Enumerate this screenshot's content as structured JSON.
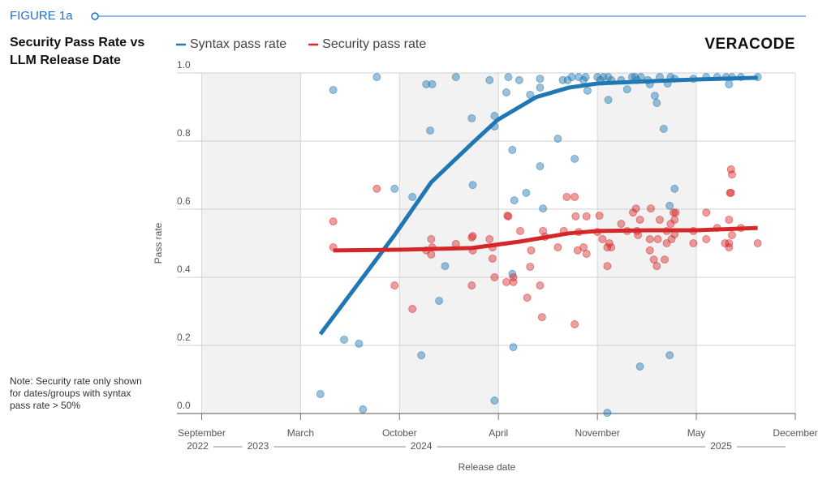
{
  "chart_data": {
    "type": "scatter",
    "figure_label": "FIGURE 1a",
    "title": "Security Pass Rate vs LLM Release Date",
    "brand": "VERACODE",
    "note": "Note: Security rate only shown for dates/groups with syntax pass rate > 50%",
    "xlabel": "Release date",
    "ylabel": "Pass rate",
    "xlim": [
      -0.25,
      6
    ],
    "ylim": [
      0,
      1
    ],
    "xticks": [
      {
        "value": 0,
        "label": "September"
      },
      {
        "value": 1,
        "label": "March"
      },
      {
        "value": 2,
        "label": "October"
      },
      {
        "value": 3,
        "label": "April"
      },
      {
        "value": 4,
        "label": "November"
      },
      {
        "value": 5,
        "label": "May"
      },
      {
        "value": 6,
        "label": "December"
      }
    ],
    "year_ticks": [
      {
        "value": -0.04,
        "label": "2022"
      },
      {
        "value": 0.57,
        "label": "2023"
      },
      {
        "value": 2.22,
        "label": "2024"
      },
      {
        "value": 5.25,
        "label": "2025"
      }
    ],
    "yticks": [
      {
        "value": 0,
        "label": "0.0"
      },
      0.2,
      0.4,
      0.6,
      0.8,
      {
        "value": 1,
        "label": "1.0"
      }
    ],
    "grid": true,
    "series": [
      {
        "name": "Syntax pass rate",
        "color": "#1f77b4",
        "x": [
          1.2,
          1.95,
          2.32,
          2.74,
          2.99,
          3.38,
          3.71,
          4.0,
          4.53,
          5.0,
          5.62
        ],
        "values": [
          0.233,
          0.524,
          0.679,
          0.795,
          0.862,
          0.929,
          0.957,
          0.969,
          0.976,
          0.981,
          0.986
        ]
      },
      {
        "name": "Security pass rate",
        "color": "#d62728",
        "x": [
          1.33,
          1.99,
          2.73,
          3.22,
          3.71,
          4.0,
          4.53,
          5.0,
          5.62
        ],
        "values": [
          0.479,
          0.481,
          0.486,
          0.505,
          0.529,
          0.536,
          0.538,
          0.538,
          0.545
        ]
      }
    ],
    "points": [
      {
        "color": "#1f77b4",
        "x": [
          1.2,
          1.33,
          1.44,
          1.59,
          1.63,
          1.77,
          1.95,
          2.13,
          2.22,
          2.27,
          2.33,
          2.31,
          2.4,
          2.46,
          2.57,
          2.73,
          2.74,
          2.91,
          2.96,
          2.96,
          2.96,
          3.08,
          3.1,
          3.14,
          3.14,
          3.15,
          3.16,
          3.21,
          3.28,
          3.32,
          3.42,
          3.42,
          3.45,
          3.42,
          3.6,
          3.65,
          3.7,
          3.74,
          3.77,
          3.81,
          3.86,
          3.88,
          3.9,
          4.0,
          4.03,
          4.06,
          4.11,
          4.11,
          4.1,
          4.14,
          4.24,
          4.3,
          4.35,
          4.38,
          4.4,
          4.44,
          4.43,
          4.51,
          4.53,
          4.58,
          4.6,
          4.63,
          4.67,
          4.71,
          4.73,
          4.74,
          4.78,
          4.73,
          4.78,
          4.97,
          5.1,
          5.21,
          5.3,
          5.33,
          5.36,
          5.45,
          5.62
        ],
        "values": [
          0.057,
          0.95,
          0.217,
          0.205,
          0.012,
          0.988,
          0.66,
          0.636,
          0.171,
          0.967,
          0.967,
          0.831,
          0.331,
          0.433,
          0.988,
          0.867,
          0.671,
          0.979,
          0.843,
          0.874,
          0.038,
          0.943,
          0.988,
          0.774,
          0.41,
          0.195,
          0.626,
          0.979,
          0.648,
          0.936,
          0.957,
          0.983,
          0.602,
          0.726,
          0.807,
          0.979,
          0.979,
          0.988,
          0.748,
          0.988,
          0.979,
          0.988,
          0.948,
          0.988,
          0.979,
          0.988,
          0.921,
          0.988,
          0.002,
          0.979,
          0.979,
          0.952,
          0.988,
          0.988,
          0.979,
          0.988,
          0.138,
          0.979,
          0.967,
          0.933,
          0.912,
          0.988,
          0.836,
          0.969,
          0.61,
          0.988,
          0.983,
          0.171,
          0.66,
          0.983,
          0.988,
          0.988,
          0.988,
          0.967,
          0.988,
          0.988,
          0.988
        ]
      },
      {
        "color": "#d62728",
        "x": [
          1.33,
          1.33,
          1.77,
          1.95,
          2.13,
          2.27,
          2.32,
          2.33,
          2.32,
          2.57,
          2.73,
          2.74,
          2.74,
          2.73,
          2.91,
          2.94,
          2.94,
          2.96,
          3.08,
          3.09,
          3.1,
          3.15,
          3.15,
          3.22,
          3.29,
          3.32,
          3.33,
          3.42,
          3.44,
          3.45,
          3.47,
          3.6,
          3.66,
          3.69,
          3.77,
          3.77,
          3.78,
          3.8,
          3.81,
          3.86,
          3.89,
          3.89,
          4.0,
          4.02,
          4.05,
          4.1,
          4.12,
          4.1,
          4.14,
          4.24,
          4.3,
          4.36,
          4.4,
          4.39,
          4.41,
          4.43,
          4.54,
          4.53,
          4.53,
          4.57,
          4.6,
          4.61,
          4.63,
          4.68,
          4.7,
          4.7,
          4.74,
          4.75,
          4.77,
          4.78,
          4.78,
          4.79,
          4.97,
          4.97,
          5.1,
          5.1,
          5.21,
          5.29,
          5.33,
          5.33,
          5.33,
          5.34,
          5.35,
          5.35,
          5.36,
          5.36,
          5.45,
          5.62
        ],
        "values": [
          0.564,
          0.488,
          0.66,
          0.376,
          0.307,
          0.479,
          0.512,
          0.488,
          0.467,
          0.498,
          0.517,
          0.521,
          0.479,
          0.376,
          0.512,
          0.488,
          0.455,
          0.4,
          0.386,
          0.581,
          0.579,
          0.386,
          0.4,
          0.536,
          0.34,
          0.431,
          0.479,
          0.376,
          0.283,
          0.536,
          0.519,
          0.488,
          0.536,
          0.636,
          0.636,
          0.262,
          0.579,
          0.479,
          0.533,
          0.488,
          0.469,
          0.579,
          0.533,
          0.581,
          0.512,
          0.488,
          0.5,
          0.433,
          0.488,
          0.557,
          0.536,
          0.59,
          0.536,
          0.602,
          0.524,
          0.569,
          0.602,
          0.512,
          0.479,
          0.452,
          0.433,
          0.512,
          0.569,
          0.452,
          0.5,
          0.536,
          0.557,
          0.512,
          0.59,
          0.569,
          0.526,
          0.59,
          0.5,
          0.536,
          0.59,
          0.512,
          0.545,
          0.5,
          0.488,
          0.5,
          0.569,
          0.648,
          0.648,
          0.717,
          0.702,
          0.524,
          0.545,
          0.5
        ]
      }
    ]
  }
}
